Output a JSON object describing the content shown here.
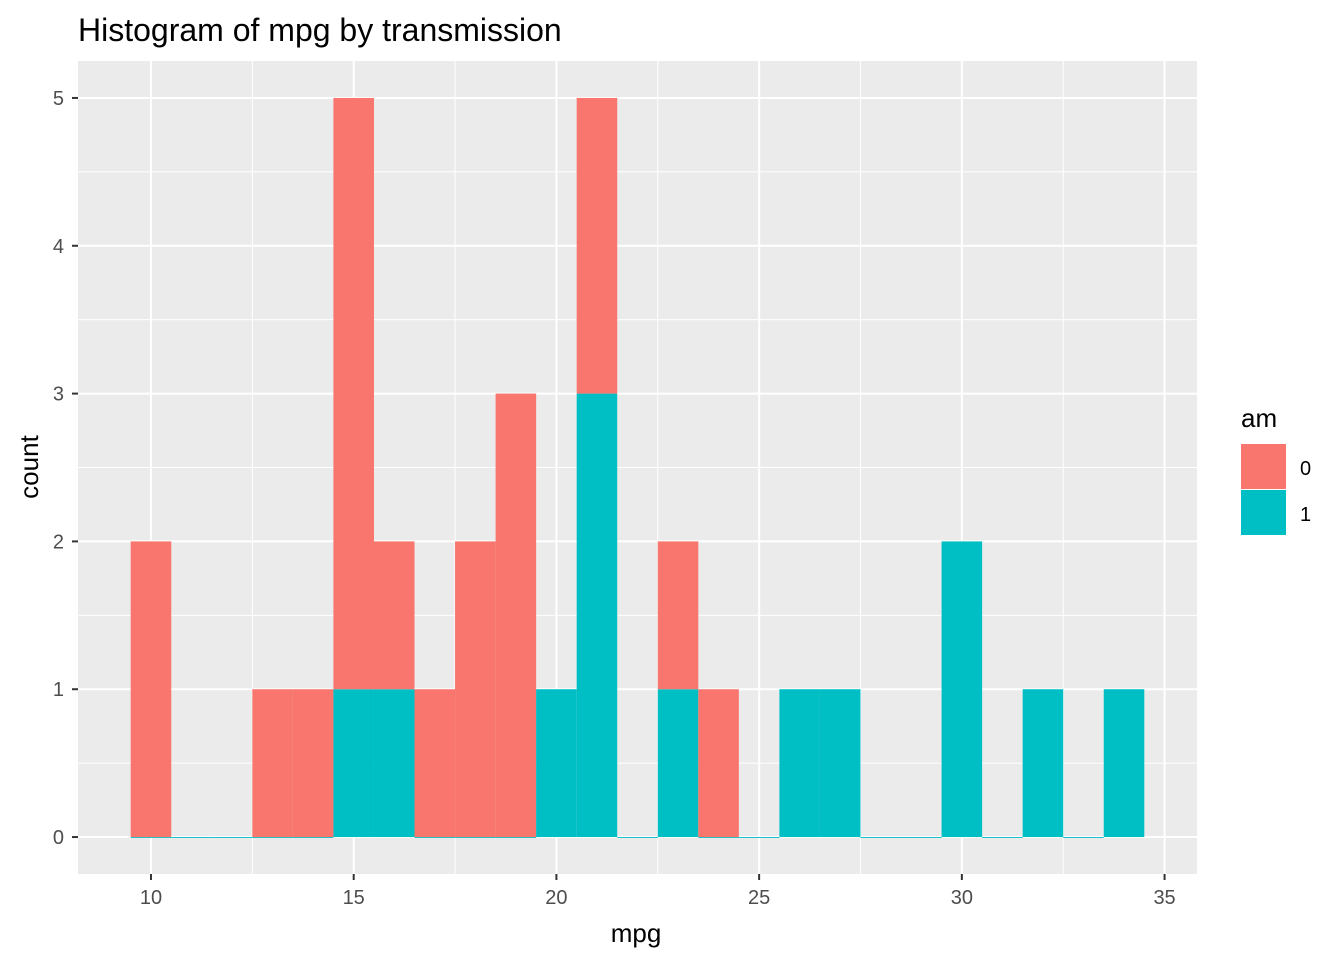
{
  "chart_data": {
    "type": "bar",
    "subtype": "stacked-histogram",
    "title": "Histogram of mpg by transmission",
    "xlabel": "mpg",
    "ylabel": "count",
    "xlim": [
      8.2,
      35.8
    ],
    "ylim": [
      -0.25,
      5.25
    ],
    "x_ticks": [
      10,
      15,
      20,
      25,
      30,
      35
    ],
    "x_tick_labels": [
      "10",
      "15",
      "20",
      "25",
      "30",
      "35"
    ],
    "y_ticks": [
      0,
      1,
      2,
      3,
      4,
      5
    ],
    "y_tick_labels": [
      "0",
      "1",
      "2",
      "3",
      "4",
      "5"
    ],
    "grid": true,
    "bin_width": 1,
    "bin_centers": [
      10,
      11,
      12,
      13,
      14,
      15,
      16,
      17,
      18,
      19,
      20,
      21,
      22,
      23,
      24,
      25,
      26,
      27,
      28,
      29,
      30,
      31,
      32,
      33,
      34
    ],
    "series": [
      {
        "name": "0",
        "color": "#F8766D",
        "values": [
          2,
          0,
          0,
          1,
          1,
          4,
          1,
          1,
          2,
          3,
          0,
          2,
          0,
          1,
          1,
          0,
          0,
          0,
          0,
          0,
          0,
          0,
          0,
          0,
          0
        ]
      },
      {
        "name": "1",
        "color": "#00BFC4",
        "values": [
          0,
          0,
          0,
          0,
          0,
          1,
          1,
          0,
          0,
          0,
          1,
          3,
          0,
          1,
          0,
          0,
          1,
          1,
          0,
          0,
          2,
          0,
          1,
          0,
          1
        ]
      }
    ],
    "legend": {
      "title": "am",
      "position": "right"
    }
  }
}
